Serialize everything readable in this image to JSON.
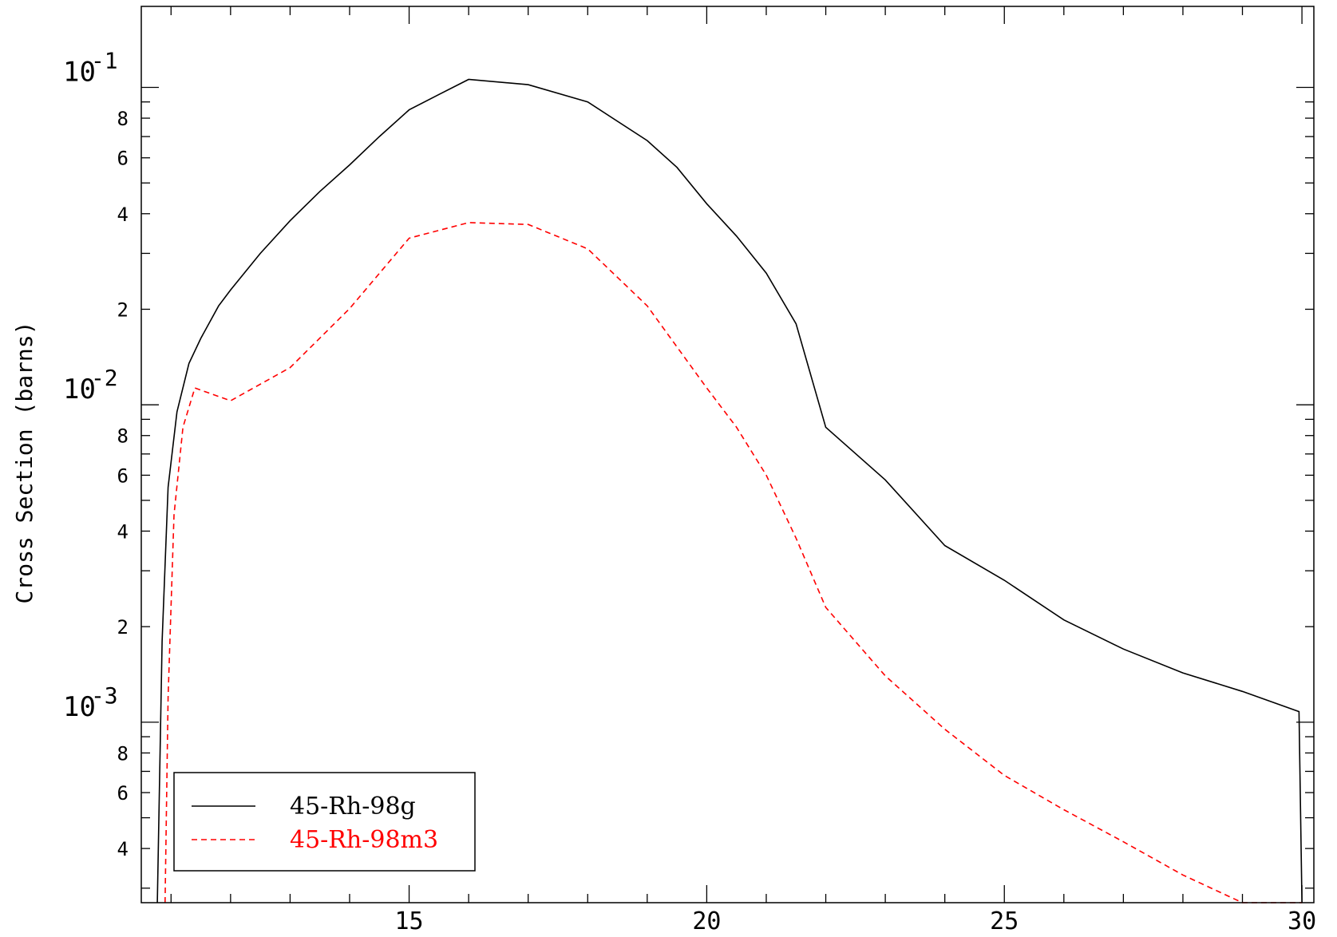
{
  "chart_data": {
    "type": "line",
    "title": "",
    "xlabel": "",
    "ylabel": "Cross Section (barns)",
    "xlim": [
      10.5,
      30.2
    ],
    "ylim": [
      0.00027,
      0.18
    ],
    "yscale": "log",
    "x_ticks": [
      15,
      20,
      25,
      30
    ],
    "y_decade_ticks": [
      {
        "value": 0.1,
        "mantissa": "10",
        "exponent": "-1"
      },
      {
        "value": 0.01,
        "mantissa": "10",
        "exponent": "-2"
      },
      {
        "value": 0.001,
        "mantissa": "10",
        "exponent": "-3"
      }
    ],
    "y_minor_labels": [
      "2",
      "4",
      "6",
      "8"
    ],
    "grid": false,
    "legend_position": "bottom-left",
    "series": [
      {
        "name": "45-Rh-98g",
        "color": "#000000",
        "dash": "solid",
        "x": [
          10.77,
          10.85,
          10.95,
          11.1,
          11.3,
          11.5,
          11.8,
          12.0,
          12.5,
          13.0,
          13.5,
          14.0,
          14.5,
          15.0,
          15.5,
          16.0,
          17.0,
          18.0,
          19.0,
          19.5,
          20.0,
          20.5,
          21.0,
          21.5,
          22.0,
          23.0,
          24.0,
          25.0,
          26.0,
          27.0,
          28.0,
          29.0,
          29.95,
          30.0
        ],
        "y": [
          0.00027,
          0.0018,
          0.0055,
          0.0095,
          0.0135,
          0.0162,
          0.0205,
          0.023,
          0.03,
          0.038,
          0.047,
          0.057,
          0.07,
          0.085,
          0.095,
          0.106,
          0.102,
          0.09,
          0.068,
          0.056,
          0.043,
          0.034,
          0.026,
          0.018,
          0.0085,
          0.0058,
          0.0036,
          0.0028,
          0.0021,
          0.0017,
          0.00143,
          0.00125,
          0.00108,
          0.00027
        ]
      },
      {
        "name": "45-Rh-98m3",
        "color": "#ff0000",
        "dash": "dashed",
        "x": [
          10.9,
          10.95,
          11.05,
          11.2,
          11.4,
          12.0,
          13.0,
          14.0,
          15.0,
          16.0,
          17.0,
          18.0,
          19.0,
          20.0,
          20.5,
          21.0,
          21.5,
          22.0,
          23.0,
          24.0,
          25.0,
          26.0,
          27.0,
          28.0,
          29.0,
          30.0
        ],
        "y": [
          0.00027,
          0.0012,
          0.0045,
          0.0085,
          0.0113,
          0.0103,
          0.0131,
          0.0201,
          0.0335,
          0.0375,
          0.037,
          0.031,
          0.0205,
          0.0113,
          0.0085,
          0.006,
          0.0038,
          0.0023,
          0.0014,
          0.00095,
          0.00068,
          0.00053,
          0.00042,
          0.00033,
          0.00027,
          0.00024
        ]
      }
    ]
  }
}
